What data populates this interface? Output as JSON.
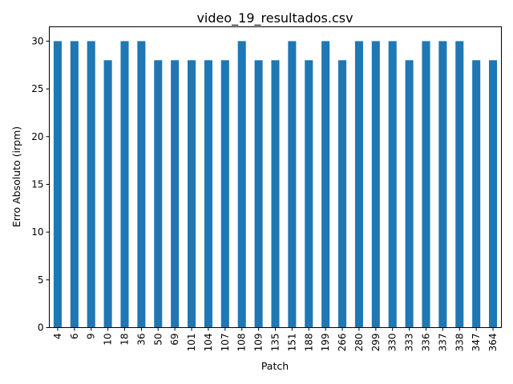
{
  "chart_data": {
    "type": "bar",
    "title": "video_19_resultados.csv",
    "xlabel": "Patch",
    "ylabel": "Erro Absoluto (irpm)",
    "categories": [
      "4",
      "6",
      "9",
      "10",
      "18",
      "36",
      "50",
      "69",
      "101",
      "104",
      "107",
      "108",
      "109",
      "135",
      "151",
      "188",
      "199",
      "266",
      "280",
      "299",
      "330",
      "333",
      "336",
      "337",
      "338",
      "347",
      "364"
    ],
    "values": [
      30,
      30,
      30,
      28,
      30,
      30,
      28,
      28,
      28,
      28,
      28,
      30,
      28,
      28,
      30,
      28,
      30,
      28,
      30,
      30,
      30,
      28,
      30,
      30,
      30,
      28,
      28
    ],
    "ylim": [
      0,
      31.5
    ],
    "yticks": [
      0,
      5,
      10,
      15,
      20,
      25,
      30
    ],
    "grid": false,
    "legend": "none",
    "bar_color": "#1f77b4"
  }
}
